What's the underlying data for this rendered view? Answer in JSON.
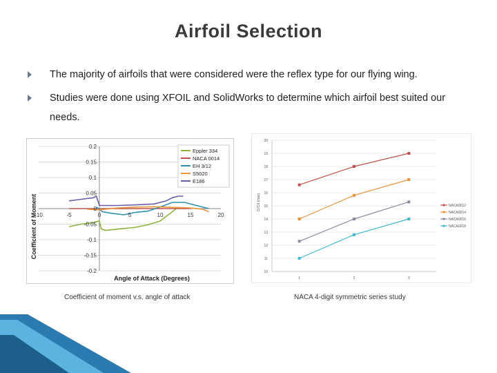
{
  "slide": {
    "title": "Airfoil Selection",
    "bullets": [
      "The majority of airfoils that were considered were the reflex type for our flying wing.",
      "Studies were done using XFOIL and SolidWorks to determine which airfoil best suited our needs."
    ],
    "captions": {
      "left": "Coefficient of moment v.s. angle of attack",
      "right": "NACA 4-digit symmetric series study"
    },
    "theme_colors": {
      "band_dark": "#1b5f8a",
      "band_light": "#4aa3d4"
    }
  },
  "chart_data": [
    {
      "type": "line",
      "title": "",
      "xlabel": "Angle of Attack (Degrees)",
      "ylabel": "Coefficient of Moment",
      "xlim": [
        -10,
        20
      ],
      "ylim": [
        -0.2,
        0.2
      ],
      "x_ticks": [
        "-10",
        "-5",
        "0",
        "5",
        "10",
        "15",
        "20"
      ],
      "y_ticks": [
        "0.2",
        "0.15",
        "0.1",
        "0.05",
        "0",
        "-0.05",
        "-0.1",
        "-0.15",
        "-0.2"
      ],
      "grid": true,
      "legend": "top-right",
      "series": [
        {
          "name": "Eppler 334",
          "color": "#8db33c",
          "points": [
            [
              -5,
              -0.058
            ],
            [
              -3,
              -0.05
            ],
            [
              -1,
              -0.045
            ],
            [
              0,
              -0.04
            ],
            [
              0.3,
              -0.065
            ],
            [
              1,
              -0.07
            ],
            [
              3,
              -0.066
            ],
            [
              6,
              -0.06
            ],
            [
              8,
              -0.052
            ],
            [
              10,
              -0.04
            ],
            [
              12,
              -0.01
            ],
            [
              13,
              0.005
            ]
          ]
        },
        {
          "name": "NACA 0014",
          "color": "#c0504d",
          "points": [
            [
              -5,
              0
            ],
            [
              -3,
              0
            ],
            [
              0,
              0
            ],
            [
              5,
              0
            ],
            [
              10,
              0
            ],
            [
              15,
              0
            ]
          ]
        },
        {
          "name": "EH 3/12",
          "color": "#2f8fb0",
          "points": [
            [
              -0.5,
              0.005
            ],
            [
              0.5,
              -0.01
            ],
            [
              2,
              -0.015
            ],
            [
              4,
              -0.02
            ],
            [
              6,
              -0.012
            ],
            [
              8,
              -0.008
            ],
            [
              10,
              0.005
            ],
            [
              12,
              0.02
            ],
            [
              14,
              0.02
            ],
            [
              16,
              0.01
            ],
            [
              18,
              0
            ]
          ]
        },
        {
          "name": "S5020",
          "color": "#e8923a",
          "points": [
            [
              -2,
              -0.002
            ],
            [
              0,
              -0.004
            ],
            [
              3,
              0.002
            ],
            [
              6,
              0.005
            ],
            [
              9,
              0.006
            ],
            [
              12,
              0.004
            ],
            [
              15,
              0.002
            ],
            [
              17,
              -0.002
            ],
            [
              18,
              -0.01
            ]
          ]
        },
        {
          "name": "E186",
          "color": "#6b5ca8",
          "points": [
            [
              -5,
              0.025
            ],
            [
              -3,
              0.03
            ],
            [
              -1,
              0.035
            ],
            [
              -0.5,
              0.04
            ],
            [
              0,
              0.01
            ],
            [
              3,
              0.01
            ],
            [
              6,
              0.012
            ],
            [
              9,
              0.015
            ],
            [
              11,
              0.025
            ],
            [
              12,
              0.035
            ],
            [
              13,
              0.04
            ],
            [
              13.8,
              0.04
            ]
          ]
        }
      ]
    },
    {
      "type": "line",
      "title": "",
      "xlabel": "",
      "ylabel": "Cl/Cd (max)",
      "categories": [
        "1",
        "2",
        "3"
      ],
      "ylim": [
        10,
        20
      ],
      "y_ticks": [
        "20",
        "19",
        "18",
        "17",
        "16",
        "15",
        "14",
        "13",
        "12",
        "11",
        "10"
      ],
      "grid": true,
      "legend": "right",
      "series": [
        {
          "name": "NACA0012",
          "color": "#c0504d",
          "values": [
            16.6,
            18.0,
            19.0
          ]
        },
        {
          "name": "NACA0014",
          "color": "#e8923a",
          "values": [
            14.0,
            15.8,
            17.0
          ]
        },
        {
          "name": "NACA0016",
          "color": "#8a8aa0",
          "values": [
            12.3,
            14.0,
            15.3
          ]
        },
        {
          "name": "NACA0018",
          "color": "#40b8d0",
          "values": [
            11.0,
            12.8,
            14.0
          ]
        }
      ]
    }
  ]
}
